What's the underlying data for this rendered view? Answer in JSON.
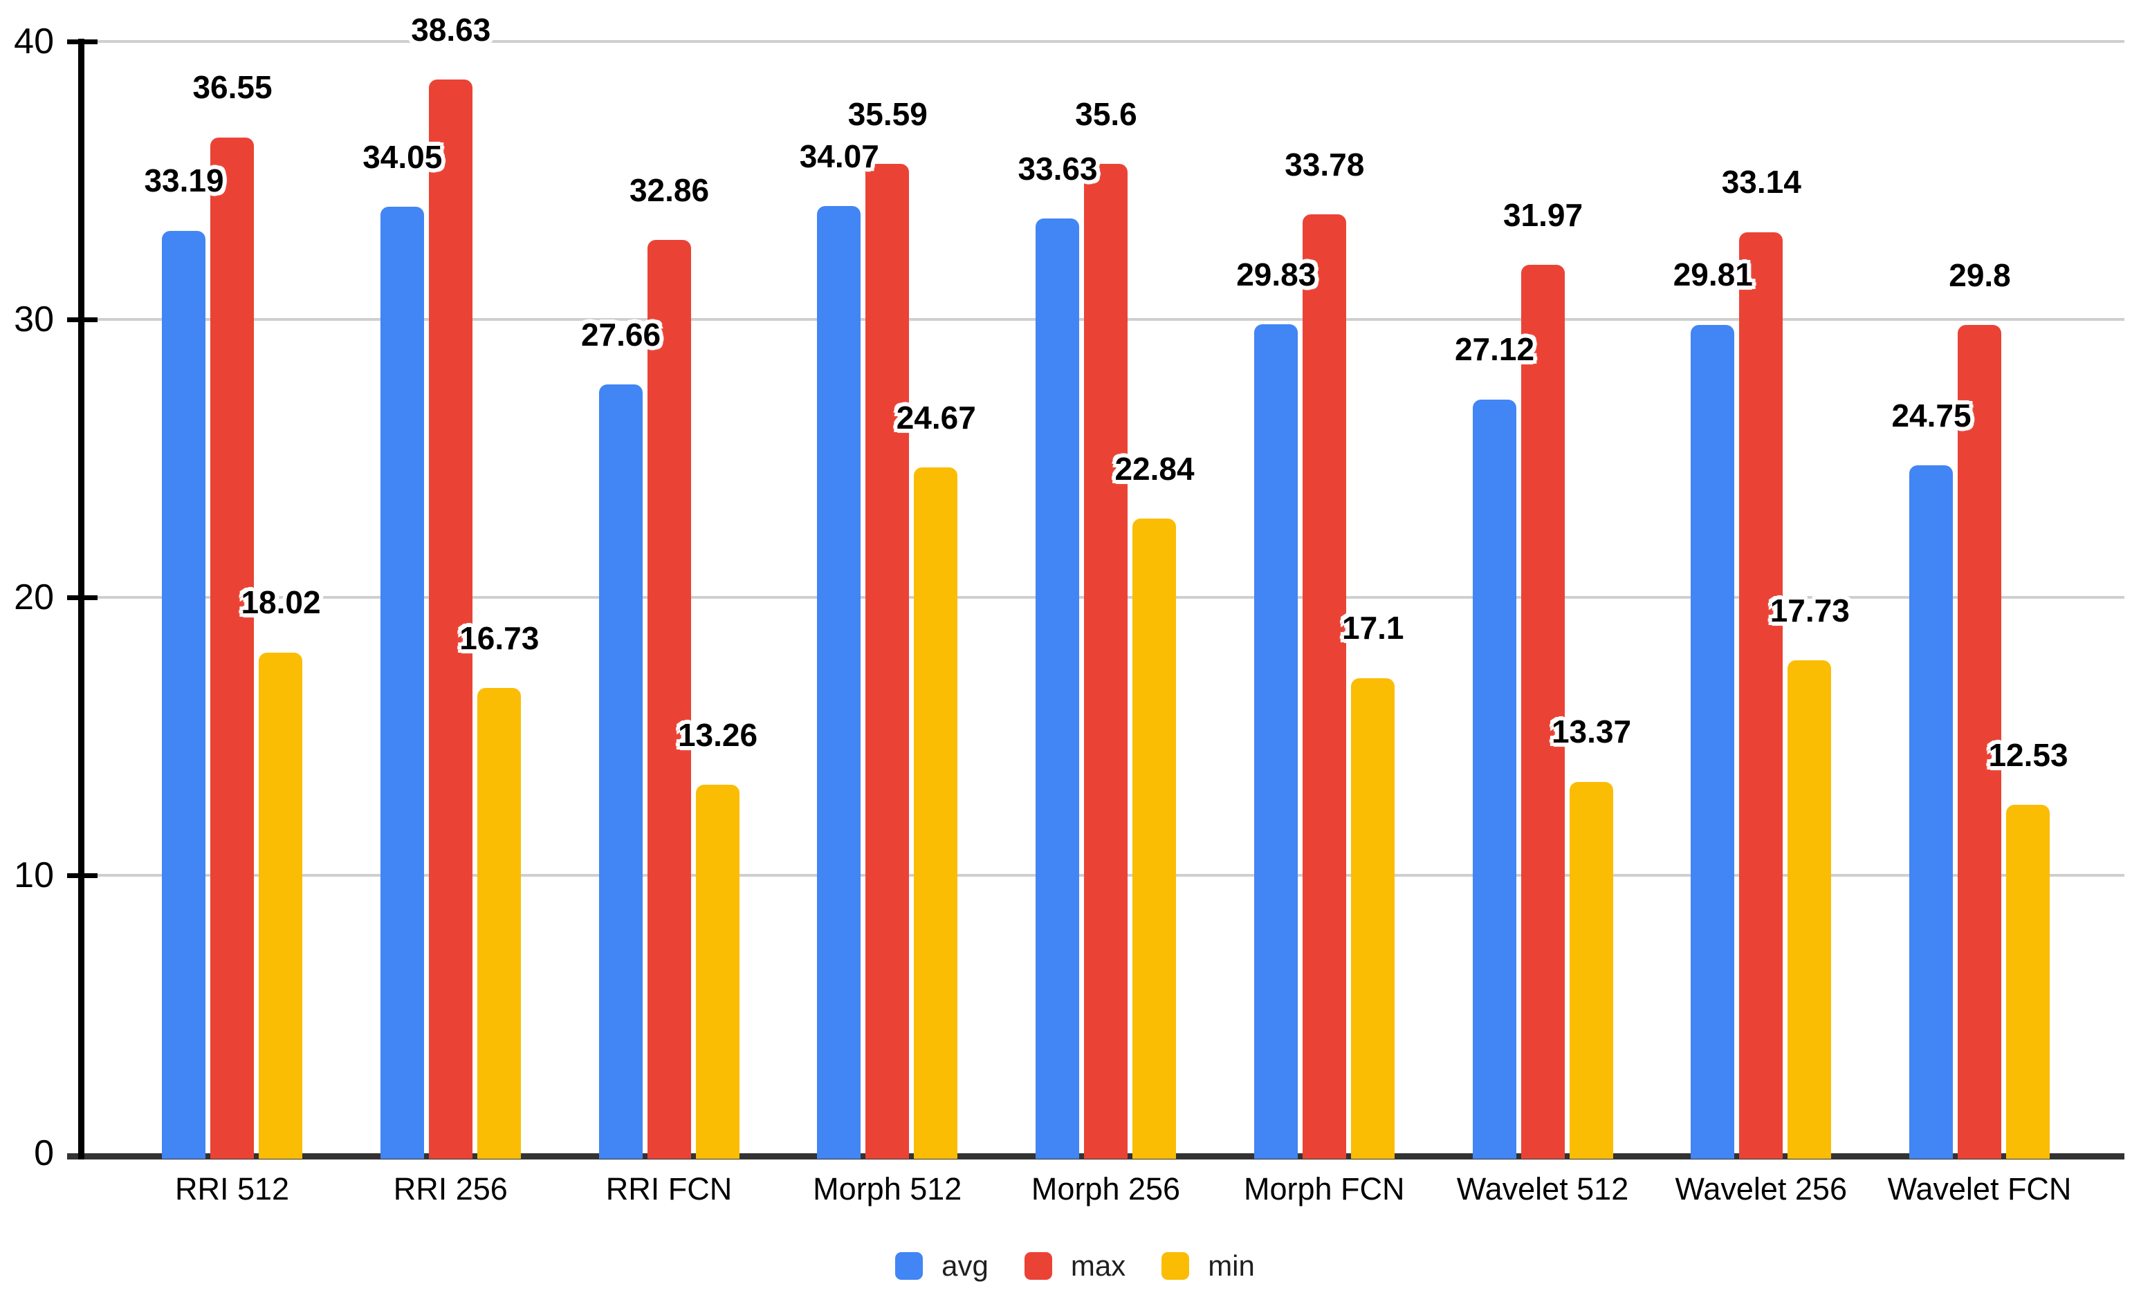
{
  "chart_data": {
    "type": "bar",
    "title": "",
    "categories": [
      "RRI 512",
      "RRI 256",
      "RRI FCN",
      "Morph 512",
      "Morph 256",
      "Morph FCN",
      "Wavelet 512",
      "Wavelet 256",
      "Wavelet FCN"
    ],
    "series": [
      {
        "name": "avg",
        "color": "#4285F4",
        "values": [
          33.19,
          34.05,
          27.66,
          34.07,
          33.63,
          29.83,
          27.12,
          29.81,
          24.75
        ],
        "labels": [
          "33.19",
          "34.05",
          "27.66",
          "34.07",
          "33.63",
          "29.83",
          "27.12",
          "29.81",
          "24.75"
        ]
      },
      {
        "name": "max",
        "color": "#EA4335",
        "values": [
          36.55,
          38.63,
          32.86,
          35.59,
          35.6,
          33.78,
          31.97,
          33.14,
          29.8
        ],
        "labels": [
          "36.55",
          "38.63",
          "32.86",
          "35.59",
          "35.6",
          "33.78",
          "31.97",
          "33.14",
          "29.8"
        ]
      },
      {
        "name": "min",
        "color": "#FBBC04",
        "values": [
          18.02,
          16.73,
          13.26,
          24.67,
          22.84,
          17.1,
          13.37,
          17.73,
          12.53
        ],
        "labels": [
          "18.02",
          "16.73",
          "13.26",
          "24.67",
          "22.84",
          "17.1",
          "13.37",
          "17.73",
          "12.53"
        ]
      }
    ],
    "xlabel": "",
    "ylabel": "",
    "ylim": [
      0,
      40
    ],
    "yticks": [
      "0",
      "10",
      "20",
      "30",
      "40"
    ],
    "grid": true,
    "legend_position": "bottom",
    "legend_entries": [
      "avg",
      "max",
      "min"
    ]
  },
  "colors": {
    "series_avg": "#4285F4",
    "series_max": "#EA4335",
    "series_min": "#FBBC04",
    "gridline": "#cfcfcf",
    "baseline": "#333333",
    "axis_line": "#000000",
    "label_text": "#000000"
  }
}
